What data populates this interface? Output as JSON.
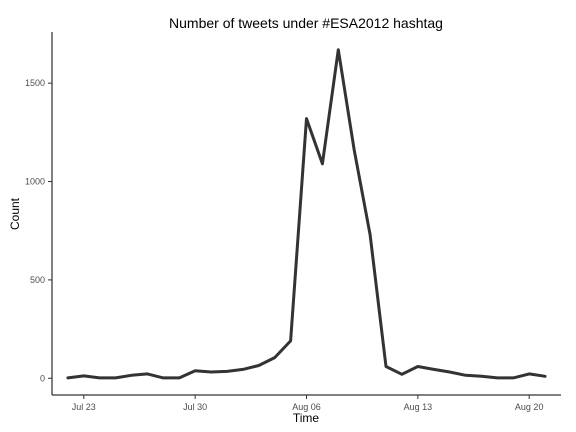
{
  "chart_data": {
    "type": "line",
    "title": "Number of tweets under #ESA2012 hashtag",
    "xlabel": "Time",
    "ylabel": "Count",
    "x_tick_labels": [
      "Jul 23",
      "Jul 30",
      "Aug 06",
      "Aug 13",
      "Aug 20"
    ],
    "x_tick_dates": [
      "2012-07-23",
      "2012-07-30",
      "2012-08-06",
      "2012-08-13",
      "2012-08-20"
    ],
    "y_ticks": [
      0,
      500,
      1000,
      1500
    ],
    "y_tick_labels": [
      "0",
      "500",
      "1000",
      "1500"
    ],
    "xlim": [
      "2012-07-21",
      "2012-08-22"
    ],
    "ylim": [
      -85,
      1760
    ],
    "grid": false,
    "line_color": "#333333",
    "series": [
      {
        "x": [
          "2012-07-22",
          "2012-07-23",
          "2012-07-24",
          "2012-07-25",
          "2012-07-26",
          "2012-07-27",
          "2012-07-28",
          "2012-07-29",
          "2012-07-30",
          "2012-07-31",
          "2012-08-01",
          "2012-08-02",
          "2012-08-03",
          "2012-08-04",
          "2012-08-05",
          "2012-08-06",
          "2012-08-07",
          "2012-08-08",
          "2012-08-09",
          "2012-08-10",
          "2012-08-11",
          "2012-08-12",
          "2012-08-13",
          "2012-08-14",
          "2012-08-15",
          "2012-08-16",
          "2012-08-17",
          "2012-08-18",
          "2012-08-19",
          "2012-08-20",
          "2012-08-21"
        ],
        "y": [
          2,
          12,
          2,
          2,
          15,
          22,
          2,
          2,
          38,
          32,
          35,
          45,
          65,
          105,
          190,
          1320,
          1090,
          1670,
          1160,
          730,
          60,
          20,
          60,
          45,
          32,
          15,
          10,
          2,
          2,
          22,
          10
        ]
      }
    ]
  }
}
